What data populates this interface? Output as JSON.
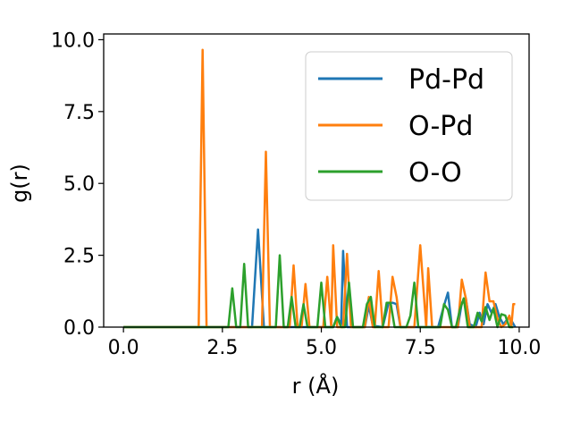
{
  "chart_data": {
    "type": "line",
    "xlabel": "r (Å)",
    "ylabel": "g(r)",
    "xlim": [
      -0.5,
      10.25
    ],
    "ylim": [
      0,
      10.2
    ],
    "xticks": [
      0.0,
      2.5,
      5.0,
      7.5,
      10.0
    ],
    "xtick_labels": [
      "0.0",
      "2.5",
      "5.0",
      "7.5",
      "10.0"
    ],
    "yticks": [
      0.0,
      2.5,
      5.0,
      7.5,
      10.0
    ],
    "ytick_labels": [
      "0.0",
      "2.5",
      "5.0",
      "7.5",
      "10.0"
    ],
    "grid": false,
    "legend_position": "top-right",
    "series": [
      {
        "name": "Pd-Pd",
        "color": "#1f77b4",
        "points": [
          [
            0.0,
            0
          ],
          [
            3.25,
            0
          ],
          [
            3.4,
            3.4
          ],
          [
            3.55,
            0
          ],
          [
            5.3,
            0
          ],
          [
            5.4,
            0.35
          ],
          [
            5.5,
            0.1
          ],
          [
            5.55,
            2.65
          ],
          [
            5.65,
            0
          ],
          [
            6.1,
            0
          ],
          [
            6.2,
            0.75
          ],
          [
            6.3,
            0.05
          ],
          [
            6.55,
            0
          ],
          [
            6.7,
            0.85
          ],
          [
            6.8,
            0.85
          ],
          [
            6.9,
            0.8
          ],
          [
            7.0,
            0
          ],
          [
            7.95,
            0
          ],
          [
            8.1,
            0.75
          ],
          [
            8.2,
            1.2
          ],
          [
            8.3,
            0
          ],
          [
            8.45,
            0
          ],
          [
            8.55,
            0.85
          ],
          [
            8.65,
            1.0
          ],
          [
            8.75,
            0.1
          ],
          [
            8.9,
            0
          ],
          [
            9.0,
            0.5
          ],
          [
            9.1,
            0.1
          ],
          [
            9.2,
            0.8
          ],
          [
            9.3,
            0.5
          ],
          [
            9.4,
            0.8
          ],
          [
            9.5,
            0.35
          ],
          [
            9.6,
            0.1
          ],
          [
            9.75,
            0.35
          ],
          [
            9.9,
            0
          ]
        ]
      },
      {
        "name": "O-Pd",
        "color": "#ff7f0e",
        "points": [
          [
            0.0,
            0
          ],
          [
            1.9,
            0
          ],
          [
            2.0,
            9.65
          ],
          [
            2.1,
            0
          ],
          [
            3.5,
            0
          ],
          [
            3.6,
            6.1
          ],
          [
            3.7,
            0
          ],
          [
            4.2,
            0
          ],
          [
            4.3,
            2.15
          ],
          [
            4.4,
            0
          ],
          [
            4.5,
            0
          ],
          [
            4.6,
            1.5
          ],
          [
            4.7,
            0
          ],
          [
            5.05,
            0
          ],
          [
            5.15,
            1.75
          ],
          [
            5.25,
            0
          ],
          [
            5.3,
            2.85
          ],
          [
            5.4,
            0
          ],
          [
            5.55,
            0
          ],
          [
            5.65,
            2.55
          ],
          [
            5.75,
            0
          ],
          [
            6.1,
            0
          ],
          [
            6.2,
            1.05
          ],
          [
            6.3,
            0
          ],
          [
            6.35,
            0
          ],
          [
            6.45,
            1.95
          ],
          [
            6.55,
            0
          ],
          [
            6.7,
            0
          ],
          [
            6.8,
            1.75
          ],
          [
            6.9,
            1.05
          ],
          [
            7.0,
            0
          ],
          [
            7.35,
            0
          ],
          [
            7.5,
            2.85
          ],
          [
            7.65,
            0
          ],
          [
            7.7,
            2.05
          ],
          [
            7.8,
            0
          ],
          [
            8.45,
            0
          ],
          [
            8.55,
            1.65
          ],
          [
            8.65,
            1.0
          ],
          [
            8.75,
            0
          ],
          [
            9.05,
            0
          ],
          [
            9.15,
            1.9
          ],
          [
            9.25,
            0.9
          ],
          [
            9.35,
            0.9
          ],
          [
            9.45,
            0.3
          ],
          [
            9.55,
            0
          ],
          [
            9.65,
            0.1
          ],
          [
            9.75,
            0.4
          ],
          [
            9.8,
            0
          ],
          [
            9.85,
            0.8
          ],
          [
            9.9,
            0.8
          ]
        ]
      },
      {
        "name": "O-O",
        "color": "#2ca02c",
        "points": [
          [
            0.0,
            0
          ],
          [
            2.65,
            0
          ],
          [
            2.75,
            1.35
          ],
          [
            2.85,
            0
          ],
          [
            2.95,
            0
          ],
          [
            3.05,
            2.2
          ],
          [
            3.15,
            0
          ],
          [
            3.85,
            0
          ],
          [
            3.95,
            2.5
          ],
          [
            4.05,
            0
          ],
          [
            4.15,
            0
          ],
          [
            4.25,
            1.05
          ],
          [
            4.35,
            0
          ],
          [
            4.45,
            0
          ],
          [
            4.55,
            0.8
          ],
          [
            4.65,
            0
          ],
          [
            4.9,
            0
          ],
          [
            5.0,
            1.55
          ],
          [
            5.1,
            0
          ],
          [
            5.3,
            0
          ],
          [
            5.4,
            0.35
          ],
          [
            5.5,
            0
          ],
          [
            5.6,
            0
          ],
          [
            5.7,
            1.55
          ],
          [
            5.8,
            0
          ],
          [
            6.05,
            0
          ],
          [
            6.15,
            0.8
          ],
          [
            6.25,
            1.05
          ],
          [
            6.35,
            0
          ],
          [
            6.55,
            0
          ],
          [
            6.65,
            0.85
          ],
          [
            6.75,
            0.85
          ],
          [
            6.85,
            0
          ],
          [
            7.15,
            0
          ],
          [
            7.25,
            0.4
          ],
          [
            7.35,
            1.55
          ],
          [
            7.45,
            0
          ],
          [
            8.0,
            0
          ],
          [
            8.1,
            0.8
          ],
          [
            8.2,
            0.6
          ],
          [
            8.3,
            0
          ],
          [
            8.4,
            0
          ],
          [
            8.5,
            0.6
          ],
          [
            8.6,
            1.0
          ],
          [
            8.7,
            0
          ],
          [
            8.85,
            0
          ],
          [
            8.95,
            0.5
          ],
          [
            9.05,
            0.2
          ],
          [
            9.15,
            0.7
          ],
          [
            9.25,
            0.25
          ],
          [
            9.35,
            0.65
          ],
          [
            9.45,
            0
          ],
          [
            9.55,
            0.45
          ],
          [
            9.65,
            0.4
          ],
          [
            9.75,
            0
          ],
          [
            9.85,
            0
          ]
        ]
      }
    ]
  }
}
